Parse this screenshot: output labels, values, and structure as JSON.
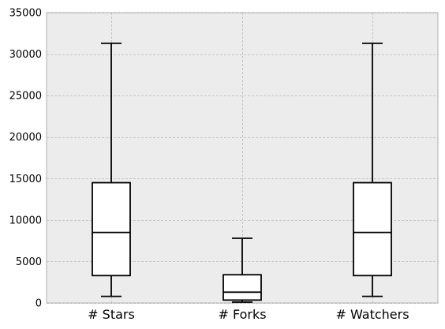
{
  "chart_data": {
    "type": "box",
    "title": "",
    "xlabel": "",
    "ylabel": "",
    "ylim": [
      0,
      35000
    ],
    "yticks": [
      0,
      5000,
      10000,
      15000,
      20000,
      25000,
      30000,
      35000
    ],
    "ytick_labels": [
      "0",
      "5000",
      "10000",
      "15000",
      "20000",
      "25000",
      "30000",
      "35000"
    ],
    "grid": true,
    "categories": [
      "# Stars",
      "# Forks",
      "# Watchers"
    ],
    "boxes": [
      {
        "whisker_low": 800,
        "q1": 3300,
        "median": 8500,
        "q3": 14500,
        "whisker_high": 31300
      },
      {
        "whisker_low": 100,
        "q1": 350,
        "median": 1300,
        "q3": 3400,
        "whisker_high": 7800
      },
      {
        "whisker_low": 800,
        "q1": 3300,
        "median": 8500,
        "q3": 14500,
        "whisker_high": 31300
      }
    ],
    "colors": {
      "background": "#ececec",
      "grid": "#b9b9b9",
      "box_fill": "#ffffff",
      "box_stroke": "#000000",
      "frame": "#b0b0b0"
    }
  }
}
